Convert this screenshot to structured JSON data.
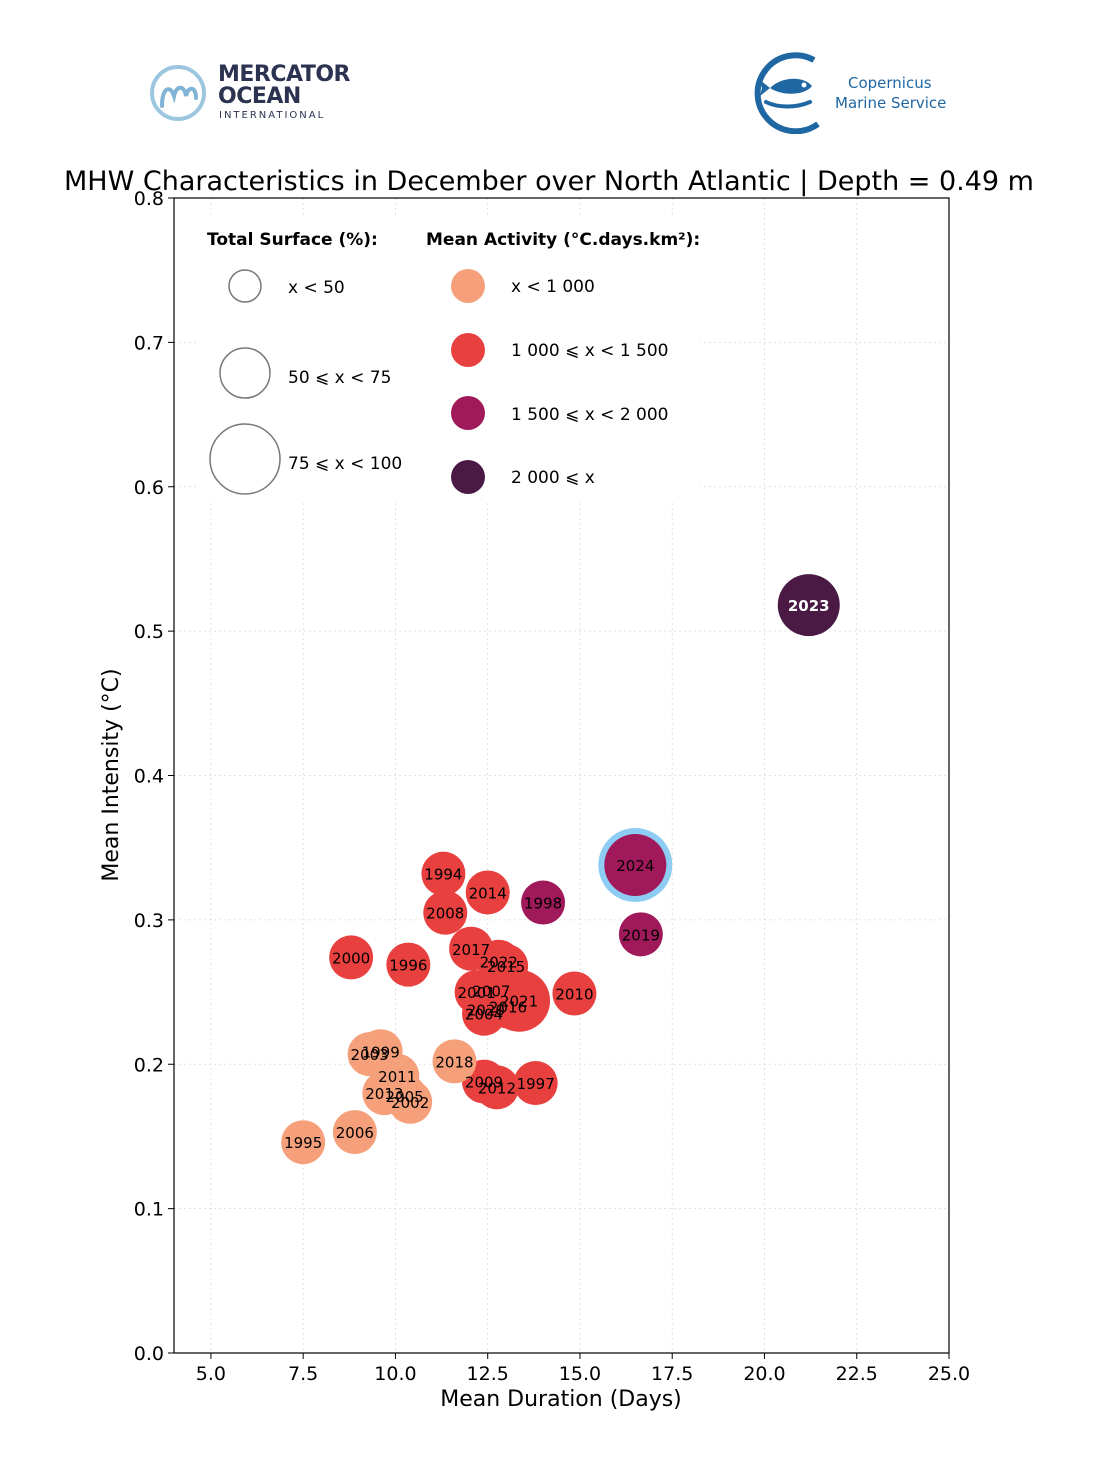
{
  "logos": {
    "left": {
      "line1": "MERCATOR",
      "line2": "OCEAN",
      "line3": "INTERNATIONAL"
    },
    "right": {
      "line1": "Copernicus",
      "line2": "Marine Service"
    }
  },
  "colors": {
    "lt1000": "#f5a07a",
    "r1000_1500": "#e8403f",
    "r1500_2000": "#a0195a",
    "ge2000": "#4a1a45",
    "highlight_ring": "#8ecdf3"
  },
  "legend": {
    "surface_title": "Total Surface (%):",
    "surface_items": [
      "x < 50",
      "50 ⩽ x < 75",
      "75 ⩽ x < 100"
    ],
    "activity_title": "Mean Activity (°C.days.km²):",
    "activity_items": [
      "x < 1 000",
      "1 000 ⩽ x < 1 500",
      "1 500 ⩽ x < 2 000",
      "2 000 ⩽ x"
    ]
  },
  "chart_data": {
    "type": "scatter",
    "title": "MHW Characteristics in December over North Atlantic | Depth = 0.49 m",
    "xlabel": "Mean Duration (Days)",
    "ylabel": "Mean Intensity (°C)",
    "xlim": [
      4.0,
      25.0
    ],
    "ylim": [
      0.0,
      0.8
    ],
    "xticks": [
      5.0,
      7.5,
      10.0,
      12.5,
      15.0,
      17.5,
      20.0,
      22.5,
      25.0
    ],
    "yticks": [
      0.0,
      0.1,
      0.2,
      0.3,
      0.4,
      0.5,
      0.6,
      0.7,
      0.8
    ],
    "xtick_labels": [
      "5.0",
      "7.5",
      "10.0",
      "12.5",
      "15.0",
      "17.5",
      "20.0",
      "22.5",
      "25.0"
    ],
    "ytick_labels": [
      "0.0",
      "0.1",
      "0.2",
      "0.3",
      "0.4",
      "0.5",
      "0.6",
      "0.7",
      "0.8"
    ],
    "grid": true,
    "points": [
      {
        "year": "1994",
        "x": 11.3,
        "y": 0.332,
        "size": 1,
        "activity": 1
      },
      {
        "year": "1995",
        "x": 7.5,
        "y": 0.146,
        "size": 1,
        "activity": 0
      },
      {
        "year": "1996",
        "x": 10.35,
        "y": 0.269,
        "size": 1,
        "activity": 1
      },
      {
        "year": "1997",
        "x": 13.8,
        "y": 0.187,
        "size": 1,
        "activity": 1
      },
      {
        "year": "1998",
        "x": 14.0,
        "y": 0.312,
        "size": 1,
        "activity": 2
      },
      {
        "year": "1999",
        "x": 9.6,
        "y": 0.209,
        "size": 1,
        "activity": 0
      },
      {
        "year": "2000",
        "x": 8.8,
        "y": 0.274,
        "size": 1,
        "activity": 1
      },
      {
        "year": "2001",
        "x": 12.2,
        "y": 0.25,
        "size": 1,
        "activity": 1
      },
      {
        "year": "2002",
        "x": 10.4,
        "y": 0.174,
        "size": 1,
        "activity": 0
      },
      {
        "year": "2003",
        "x": 9.3,
        "y": 0.207,
        "size": 1,
        "activity": 0
      },
      {
        "year": "2004",
        "x": 12.4,
        "y": 0.235,
        "size": 1,
        "activity": 1
      },
      {
        "year": "2005",
        "x": 10.25,
        "y": 0.178,
        "size": 1,
        "activity": 0
      },
      {
        "year": "2006",
        "x": 8.9,
        "y": 0.153,
        "size": 1,
        "activity": 0
      },
      {
        "year": "2007",
        "x": 12.6,
        "y": 0.251,
        "size": 1,
        "activity": 1
      },
      {
        "year": "2008",
        "x": 11.35,
        "y": 0.305,
        "size": 1,
        "activity": 1
      },
      {
        "year": "2009",
        "x": 12.4,
        "y": 0.188,
        "size": 1,
        "activity": 1
      },
      {
        "year": "2010",
        "x": 14.85,
        "y": 0.249,
        "size": 1,
        "activity": 1
      },
      {
        "year": "2011",
        "x": 10.05,
        "y": 0.192,
        "size": 1,
        "activity": 0
      },
      {
        "year": "2012",
        "x": 12.75,
        "y": 0.184,
        "size": 1,
        "activity": 1
      },
      {
        "year": "2013",
        "x": 9.7,
        "y": 0.18,
        "size": 1,
        "activity": 0
      },
      {
        "year": "2014",
        "x": 12.5,
        "y": 0.319,
        "size": 1,
        "activity": 1
      },
      {
        "year": "2015",
        "x": 13.0,
        "y": 0.268,
        "size": 1,
        "activity": 1
      },
      {
        "year": "2016",
        "x": 13.05,
        "y": 0.24,
        "size": 1,
        "activity": 1
      },
      {
        "year": "2017",
        "x": 12.05,
        "y": 0.28,
        "size": 1,
        "activity": 1
      },
      {
        "year": "2018",
        "x": 11.6,
        "y": 0.202,
        "size": 1,
        "activity": 0
      },
      {
        "year": "2019",
        "x": 16.65,
        "y": 0.29,
        "size": 1,
        "activity": 2
      },
      {
        "year": "2020",
        "x": 12.45,
        "y": 0.238,
        "size": 1,
        "activity": 1
      },
      {
        "year": "2021",
        "x": 13.35,
        "y": 0.244,
        "size": 2,
        "activity": 1
      },
      {
        "year": "2022",
        "x": 12.8,
        "y": 0.271,
        "size": 1,
        "activity": 1
      },
      {
        "year": "2023",
        "x": 21.2,
        "y": 0.518,
        "size": 2,
        "activity": 3
      },
      {
        "year": "2024",
        "x": 16.5,
        "y": 0.338,
        "size": 2,
        "activity": 2,
        "highlight": true
      }
    ]
  }
}
